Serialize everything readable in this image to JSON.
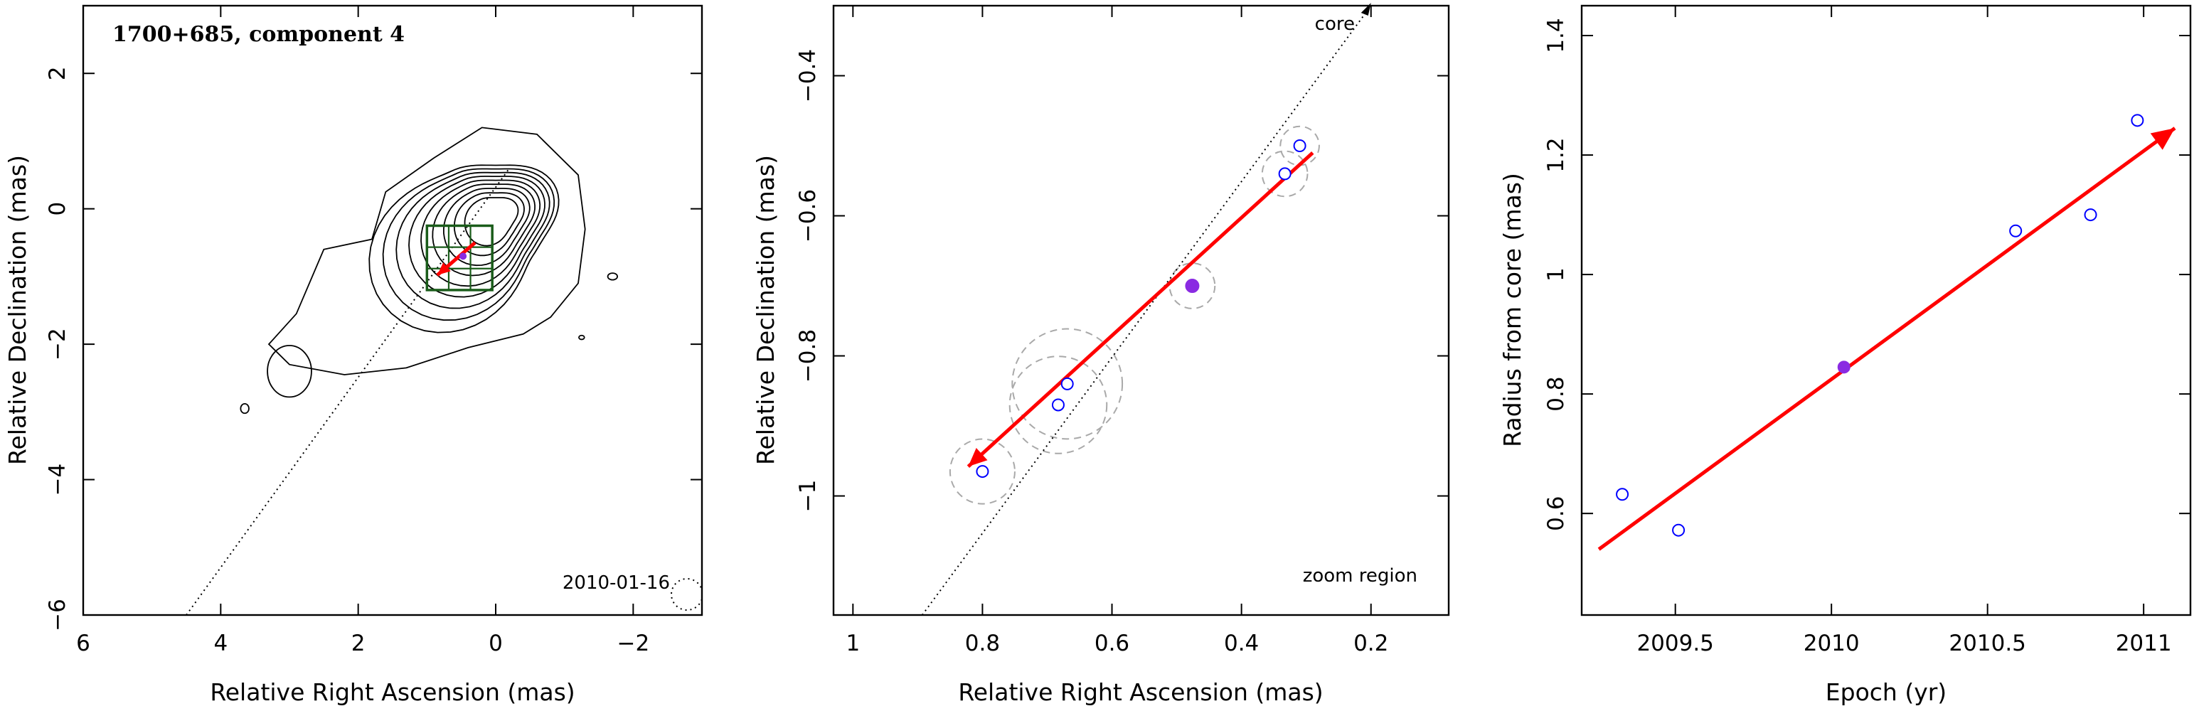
{
  "chart_data": [
    {
      "type": "contour",
      "title": "1700+685, component 4",
      "xlabel": "Relative Right Ascension (mas)",
      "ylabel": "Relative Declination (mas)",
      "xlim": [
        6,
        -3
      ],
      "ylim": [
        -6,
        3
      ],
      "xticks": [
        6,
        4,
        2,
        0,
        -2
      ],
      "yticks": [
        -6,
        -4,
        -2,
        0,
        2
      ],
      "date_label": "2010-01-16",
      "core_peak": [
        0,
        -0.2
      ],
      "zoom_box": {
        "ra": [
          1.0,
          0.05
        ],
        "dec": [
          -1.2,
          -0.25
        ]
      },
      "trajectory_line": {
        "from": [
          4.5,
          -6
        ],
        "to": [
          -0.2,
          0.6
        ]
      },
      "motion_arrow": {
        "from": [
          0.3,
          -0.5
        ],
        "to": [
          0.85,
          -0.98
        ],
        "color": "#ff0000"
      },
      "component_position": [
        0.475,
        -0.7
      ]
    },
    {
      "type": "scatter",
      "xlabel": "Relative Right Ascension (mas)",
      "ylabel": "Relative Declination (mas)",
      "xlim": [
        1.03,
        0.08
      ],
      "ylim": [
        -1.17,
        -0.3
      ],
      "xticks": [
        1,
        0.8,
        0.6,
        0.4,
        0.2
      ],
      "yticks": [
        -1,
        -0.8,
        -0.6,
        -0.4
      ],
      "points": [
        {
          "x": 0.8,
          "y": -0.965,
          "r": 0.05
        },
        {
          "x": 0.683,
          "y": -0.87,
          "r": 0.075
        },
        {
          "x": 0.669,
          "y": -0.84,
          "r": 0.085
        },
        {
          "x": 0.476,
          "y": -0.7,
          "r": 0.035,
          "filled": true
        },
        {
          "x": 0.333,
          "y": -0.54,
          "r": 0.035
        },
        {
          "x": 0.31,
          "y": -0.5,
          "r": 0.03
        }
      ],
      "arrow": {
        "from": [
          0.29,
          -0.51
        ],
        "to": [
          0.822,
          -0.958
        ],
        "color": "#ff0000"
      },
      "core_direction_line": {
        "from": [
          0.893,
          -1.17
        ],
        "to": [
          0.2,
          -0.3
        ]
      },
      "core_label": "core",
      "zoom_label": "zoom region",
      "filled_color": "#8a2be2",
      "open_color": "#0000ff"
    },
    {
      "type": "scatter",
      "xlabel": "Epoch (yr)",
      "ylabel": "Radius from core (mas)",
      "xlim": [
        2009.2,
        2011.15
      ],
      "ylim": [
        0.43,
        1.45
      ],
      "xticks": [
        2009.5,
        2010,
        2010.5,
        2011
      ],
      "xtick_labels": [
        "2009.5",
        "2010",
        "2010.5",
        "2011"
      ],
      "yticks": [
        0.6,
        0.8,
        1,
        1.2,
        1.4
      ],
      "ytick_labels": [
        "0.6",
        "0.8",
        "1",
        "1.2",
        "1.4"
      ],
      "points": [
        {
          "x": 2009.33,
          "y": 0.632
        },
        {
          "x": 2009.51,
          "y": 0.572
        },
        {
          "x": 2010.04,
          "y": 0.845,
          "filled": true
        },
        {
          "x": 2010.59,
          "y": 1.073
        },
        {
          "x": 2010.83,
          "y": 1.1
        },
        {
          "x": 2010.98,
          "y": 1.258
        }
      ],
      "fit_arrow": {
        "from": [
          2009.255,
          0.54
        ],
        "to": [
          2011.1,
          1.245
        ],
        "color": "#ff0000"
      },
      "filled_color": "#8a2be2",
      "open_color": "#0000ff"
    }
  ]
}
